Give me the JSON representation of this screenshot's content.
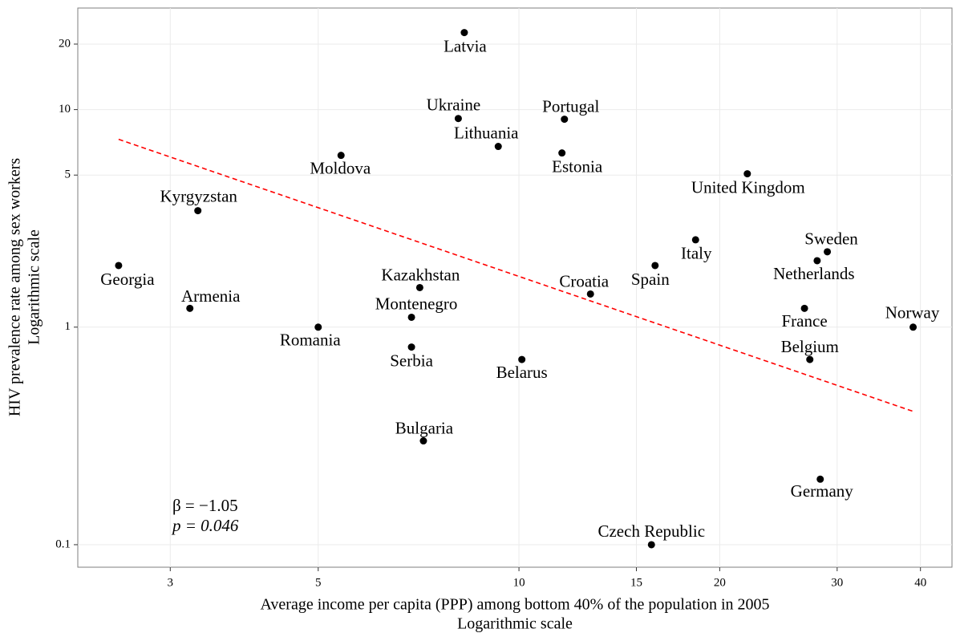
{
  "chart_data": {
    "type": "scatter",
    "x_label": [
      "Average income per capita (PPP) among bottom 40% of the population in 2005",
      "Logarithmic scale"
    ],
    "y_label": [
      "HIV prevalence rate among sex workers",
      "Logarithmic scale"
    ],
    "log_x": true,
    "log_y": true,
    "grid": true,
    "color": "#000000",
    "xlim": [
      2.18,
      44.6
    ],
    "ylim": [
      0.0788,
      29.3
    ],
    "xticks": [
      3,
      5,
      10,
      15,
      20,
      30,
      40
    ],
    "yticks": [
      0.1,
      1,
      5,
      10,
      20
    ],
    "labels": [
      "Georgia",
      "Kyrgyzstan",
      "Armenia",
      "Romania",
      "Moldova",
      "Kazakhstan",
      "Montenegro",
      "Serbia",
      "Bulgaria",
      "Latvia",
      "Ukraine",
      "Lithuania",
      "Portugal",
      "Estonia",
      "Belarus",
      "Croatia",
      "Spain",
      "Czech Republic",
      "Italy",
      "United Kingdom",
      "France",
      "Belgium",
      "Netherlands",
      "Sweden",
      "Germany",
      "Norway"
    ],
    "x": [
      2.51,
      3.3,
      3.21,
      5,
      5.41,
      7.1,
      6.9,
      6.9,
      7.19,
      8.28,
      8.11,
      9.31,
      11.7,
      11.6,
      10.1,
      12.8,
      16.0,
      15.8,
      18.4,
      22.0,
      26.8,
      27.3,
      28.0,
      29.0,
      28.3,
      39.0
    ],
    "values": [
      1.92,
      3.43,
      1.22,
      1,
      6.16,
      1.52,
      1.11,
      0.81,
      0.3,
      22.6,
      9.1,
      6.77,
      9.03,
      6.32,
      0.71,
      1.42,
      1.92,
      0.1,
      2.52,
      5.07,
      1.22,
      0.71,
      2.02,
      2.22,
      0.2,
      1
    ],
    "trend": {
      "color": "#ff0000",
      "x": [
        2.51,
        39.0
      ],
      "values": [
        7.3,
        0.41
      ]
    },
    "annotations": [
      "β = −1.05",
      "p = 0.046"
    ]
  }
}
